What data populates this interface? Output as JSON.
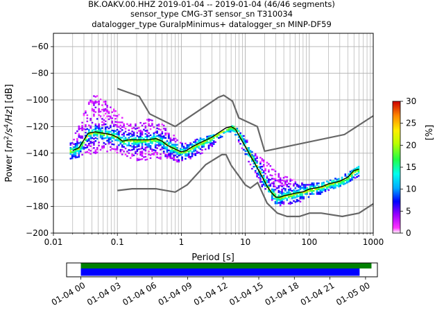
{
  "title_lines": [
    "BK.OAKV.00.HHZ   2019-01-04 -- 2019-01-04  (46/46 segments)",
    "sensor_type CMG-3T sensor_sn T310034",
    "datalogger_type GuralpMinimus+ datalogger_sn MINP-DF59"
  ],
  "chart_data": [
    {
      "type": "heatmap",
      "xlabel": "Period [s]",
      "ylabel_parts": [
        "Power [",
        "m",
        "2",
        "/",
        "s",
        "4",
        "/",
        "Hz",
        "] [dB]"
      ],
      "xscale": "log",
      "xlim": [
        0.01,
        1000
      ],
      "ylim": [
        -200,
        -50
      ],
      "x_ticks": [
        0.01,
        0.1,
        1,
        10,
        100,
        1000
      ],
      "x_tick_labels": [
        "0.01",
        "0.1",
        "1",
        "10",
        "100",
        "1000"
      ],
      "y_ticks": [
        -200,
        -180,
        -160,
        -140,
        -120,
        -100,
        -80,
        -60
      ],
      "y_tick_labels": [
        "−200",
        "−180",
        "−160",
        "−140",
        "−120",
        "−100",
        "−80",
        "−60"
      ],
      "grid": true,
      "noise_model_high": {
        "period": [
          0.1,
          0.22,
          0.32,
          0.8,
          3.8,
          4.6,
          6.3,
          7.9,
          15.4,
          20,
          354.8,
          1000
        ],
        "power": [
          -91.5,
          -97.4,
          -110.5,
          -120,
          -98,
          -96.5,
          -101,
          -113.5,
          -120,
          -138.5,
          -126,
          -112
        ]
      },
      "noise_model_low": {
        "period": [
          0.1,
          0.17,
          0.4,
          0.8,
          1.24,
          2.4,
          4.3,
          5,
          6,
          10,
          12,
          15.6,
          21.9,
          31.6,
          45,
          70,
          101,
          154,
          328,
          600,
          1000
        ],
        "power": [
          -168,
          -166.7,
          -166.7,
          -169.2,
          -163.7,
          -148.6,
          -141.1,
          -141.1,
          -149,
          -163.8,
          -166.2,
          -162.1,
          -177.5,
          -185,
          -187.5,
          -187.5,
          -185,
          -185,
          -187.5,
          -185,
          -178
        ]
      },
      "mode_curve": {
        "period": [
          0.02,
          0.025,
          0.03,
          0.035,
          0.045,
          0.06,
          0.08,
          0.1,
          0.12,
          0.15,
          0.2,
          0.3,
          0.4,
          0.5,
          0.6,
          0.8,
          1.0,
          1.2,
          1.5,
          2,
          3,
          4,
          5,
          6,
          7,
          8,
          10,
          12,
          15,
          18,
          22,
          26,
          30,
          35,
          40,
          50,
          60,
          80,
          100,
          130,
          160,
          200,
          250,
          300,
          400,
          500,
          600
        ],
        "power": [
          -138,
          -136,
          -130,
          -125,
          -124,
          -125,
          -126,
          -128,
          -131,
          -130,
          -130,
          -130,
          -129,
          -131,
          -134,
          -137,
          -139,
          -138,
          -135,
          -132,
          -128,
          -124,
          -121,
          -120,
          -122,
          -127,
          -135,
          -142,
          -150,
          -157,
          -165,
          -170,
          -173,
          -173,
          -172,
          -171,
          -170,
          -169,
          -167,
          -166,
          -165,
          -163,
          -162,
          -161,
          -158,
          -153,
          -152
        ]
      },
      "pdf_bounds": {
        "period": [
          0.018,
          0.025,
          0.03,
          0.04,
          0.05,
          0.07,
          0.1,
          0.15,
          0.2,
          0.3,
          0.4,
          0.5,
          0.7,
          0.9,
          1.0,
          1.3,
          2,
          3,
          4,
          5,
          6,
          7,
          8,
          10,
          12,
          15,
          18,
          22,
          26,
          30,
          35,
          40,
          50,
          70,
          100,
          150,
          200,
          300,
          400,
          600
        ],
        "upper": [
          -132,
          -118,
          -108,
          -95,
          -97,
          -102,
          -110,
          -118,
          -116,
          -114,
          -116,
          -118,
          -125,
          -130,
          -131,
          -131,
          -128,
          -126,
          -124,
          -122,
          -119,
          -120,
          -124,
          -128,
          -138,
          -141,
          -144,
          -147,
          -151,
          -154,
          -156,
          -157,
          -158,
          -162,
          -162,
          -162,
          -160,
          -157,
          -154,
          -149
        ],
        "lower": [
          -145,
          -142,
          -140,
          -140,
          -139,
          -138,
          -140,
          -143,
          -145,
          -145,
          -144,
          -145,
          -145,
          -146,
          -146,
          -144,
          -140,
          -134,
          -128,
          -124,
          -124,
          -126,
          -133,
          -142,
          -150,
          -158,
          -165,
          -170,
          -176,
          -178,
          -179,
          -179,
          -178,
          -176,
          -172,
          -170,
          -168,
          -164,
          -161,
          -157
        ]
      },
      "colorbar": {
        "label": "[%]",
        "min": 0,
        "max": 30,
        "ticks": [
          0,
          5,
          10,
          15,
          20,
          25,
          30
        ],
        "tick_labels": [
          "0",
          "5",
          "10",
          "15",
          "20",
          "25",
          "30"
        ]
      }
    },
    {
      "type": "bar",
      "xlabel": "",
      "time_start": "2019-01-04 00:00",
      "time_end": "2019-01-05 00:00",
      "tick_hours": [
        0,
        3,
        6,
        9,
        12,
        15,
        18,
        21,
        24
      ],
      "tick_labels": [
        "01-04 00",
        "01-04 03",
        "01-04 06",
        "01-04 09",
        "01-04 12",
        "01-04 15",
        "01-04 18",
        "01-04 21",
        "01-05 00"
      ],
      "xlim_hours": [
        -1.2,
        25.0
      ],
      "series": [
        {
          "color": "#008000",
          "start_hour": 0.0,
          "end_hour": 24.5
        },
        {
          "color": "#0000ff",
          "start_hour": 0.0,
          "end_hour": 23.5
        }
      ]
    }
  ],
  "colors": {
    "noise_model": "#666666",
    "mode": "#000000",
    "grid": "#b0b0b0"
  }
}
